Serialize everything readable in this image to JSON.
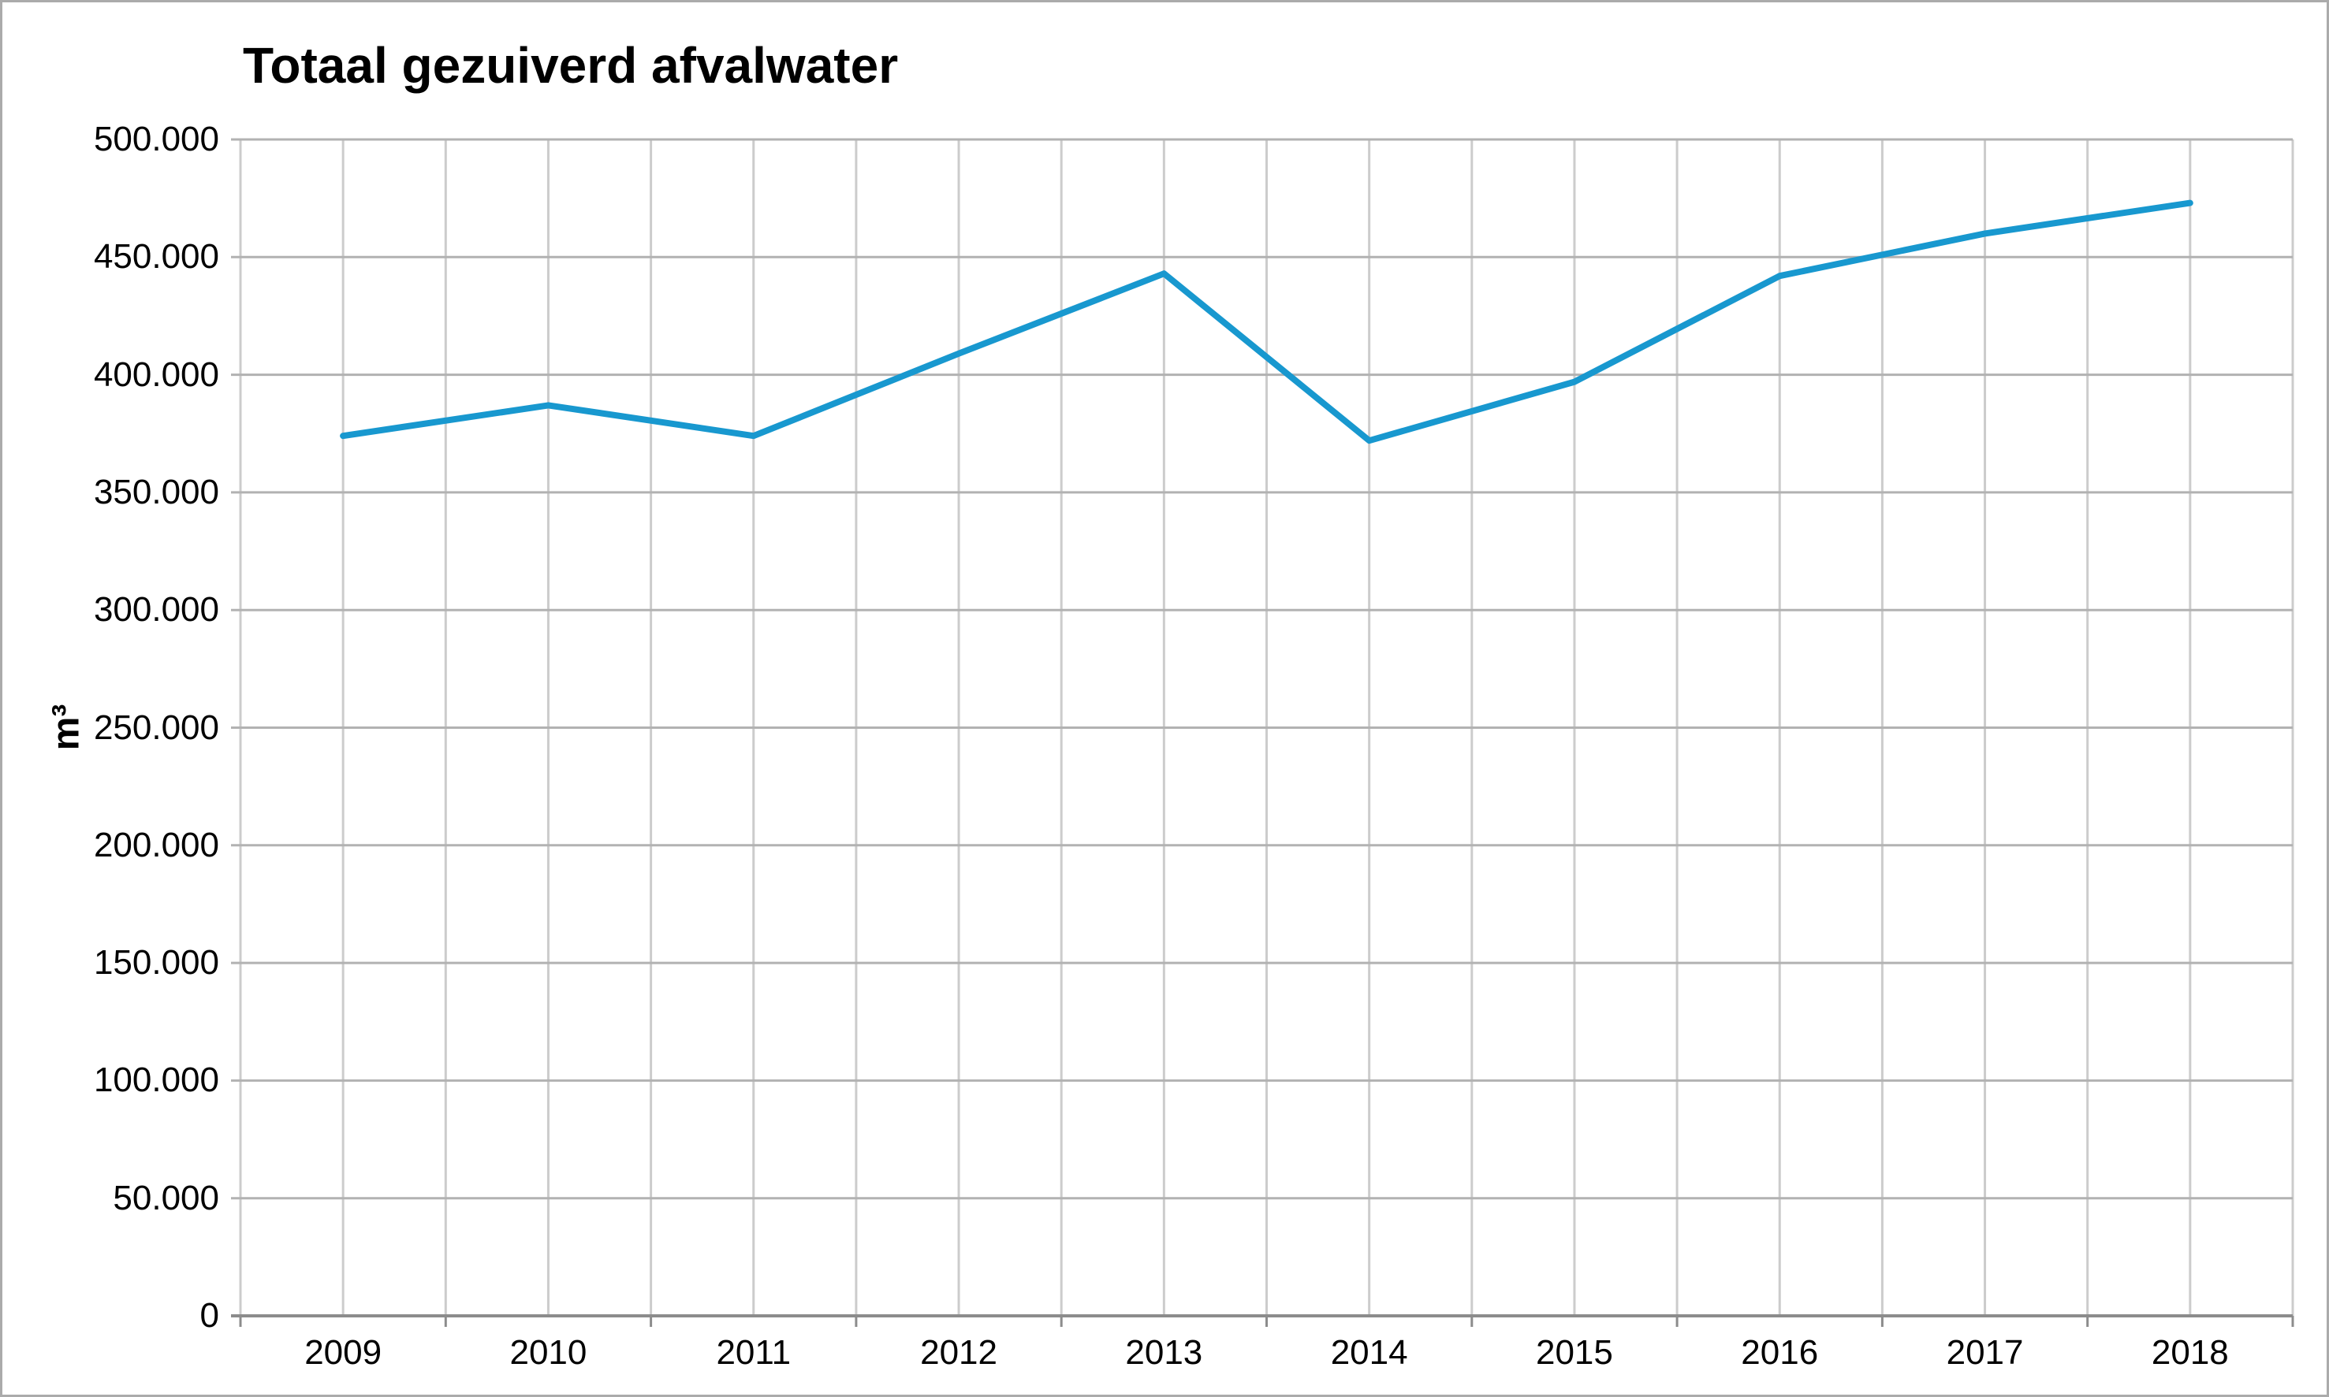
{
  "chart_data": {
    "type": "line",
    "title": "Totaal gezuiverd afvalwater",
    "ylabel": "m³",
    "xlabel": "",
    "categories": [
      "2009",
      "2010",
      "2011",
      "2012",
      "2013",
      "2014",
      "2015",
      "2016",
      "2017",
      "2018"
    ],
    "series": [
      {
        "name": "Totaal gezuiverd afvalwater",
        "values": [
          374000,
          387000,
          374000,
          409000,
          443000,
          372000,
          397000,
          442000,
          460000,
          473000
        ]
      }
    ],
    "ylim": [
      0,
      500000
    ],
    "ytick_step": 50000,
    "ytick_labels": [
      "0",
      "50.000",
      "100.000",
      "150.000",
      "200.000",
      "250.000",
      "300.000",
      "350.000",
      "400.000",
      "450.000",
      "500.000"
    ],
    "grid": true,
    "legend_position": "none",
    "colors": {
      "line": "#1898cf",
      "grid_horizontal": "#b2b2b2",
      "grid_vertical": "#cccccc",
      "axis": "#8c8c8c",
      "text": "#000000",
      "frame_border": "#ababab",
      "background": "#ffffff"
    }
  }
}
